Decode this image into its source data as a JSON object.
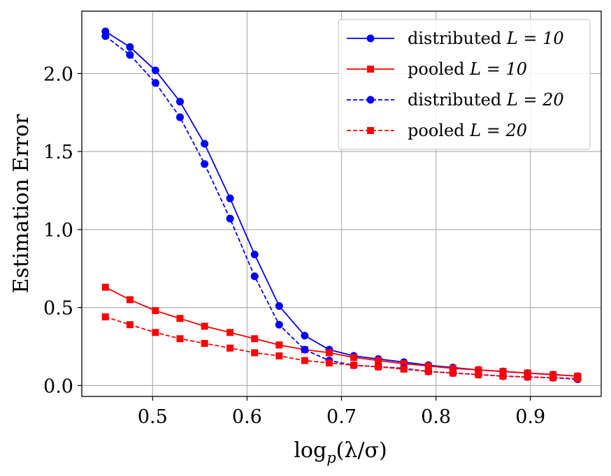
{
  "chart_data": {
    "type": "line",
    "xlabel": "log_p(λ/σ)",
    "xlabel_parts": {
      "base": "log",
      "sub": "p",
      "arg": "(λ/σ)"
    },
    "ylabel": "Estimation Error",
    "xlim": [
      0.425,
      0.975
    ],
    "ylim": [
      -0.07,
      2.4
    ],
    "grid": true,
    "legend_position": "top-right",
    "x_ticks": [
      0.5,
      0.6,
      0.7,
      0.8,
      0.9
    ],
    "x_tick_labels": [
      "0.5",
      "0.6",
      "0.7",
      "0.8",
      "0.9"
    ],
    "y_ticks": [
      0.0,
      0.5,
      1.0,
      1.5,
      2.0
    ],
    "y_tick_labels": [
      "0.0",
      "0.5",
      "1.0",
      "1.5",
      "2.0"
    ],
    "x": [
      0.45,
      0.476,
      0.503,
      0.529,
      0.555,
      0.582,
      0.608,
      0.634,
      0.661,
      0.687,
      0.713,
      0.739,
      0.766,
      0.792,
      0.818,
      0.845,
      0.871,
      0.897,
      0.924,
      0.95
    ],
    "series": [
      {
        "name": "distributed L = 10",
        "label_text": "distributed",
        "label_math": "L = 10",
        "color": "#0000ff",
        "dash": "solid",
        "marker": "circle",
        "values": [
          2.27,
          2.17,
          2.02,
          1.82,
          1.55,
          1.2,
          0.84,
          0.51,
          0.32,
          0.23,
          0.19,
          0.17,
          0.15,
          0.13,
          0.115,
          0.1,
          0.09,
          0.08,
          0.07,
          0.06
        ]
      },
      {
        "name": "pooled L = 10",
        "label_text": "pooled",
        "label_math": "L = 10",
        "color": "#ff0000",
        "dash": "solid",
        "marker": "square",
        "values": [
          0.63,
          0.55,
          0.48,
          0.43,
          0.38,
          0.34,
          0.3,
          0.26,
          0.23,
          0.21,
          0.18,
          0.16,
          0.14,
          0.125,
          0.11,
          0.1,
          0.09,
          0.08,
          0.07,
          0.06
        ]
      },
      {
        "name": "distributed L = 20",
        "label_text": "distributed",
        "label_math": "L = 20",
        "color": "#0000ff",
        "dash": "dashed",
        "marker": "circle",
        "values": [
          2.24,
          2.12,
          1.94,
          1.72,
          1.42,
          1.07,
          0.7,
          0.39,
          0.23,
          0.16,
          0.13,
          0.12,
          0.11,
          0.09,
          0.08,
          0.07,
          0.06,
          0.055,
          0.05,
          0.04
        ]
      },
      {
        "name": "pooled L = 20",
        "label_text": "pooled",
        "label_math": "L = 20",
        "color": "#ff0000",
        "dash": "dashed",
        "marker": "square",
        "values": [
          0.44,
          0.39,
          0.34,
          0.3,
          0.27,
          0.24,
          0.21,
          0.19,
          0.16,
          0.145,
          0.13,
          0.12,
          0.105,
          0.09,
          0.08,
          0.07,
          0.06,
          0.055,
          0.05,
          0.045
        ]
      }
    ]
  }
}
